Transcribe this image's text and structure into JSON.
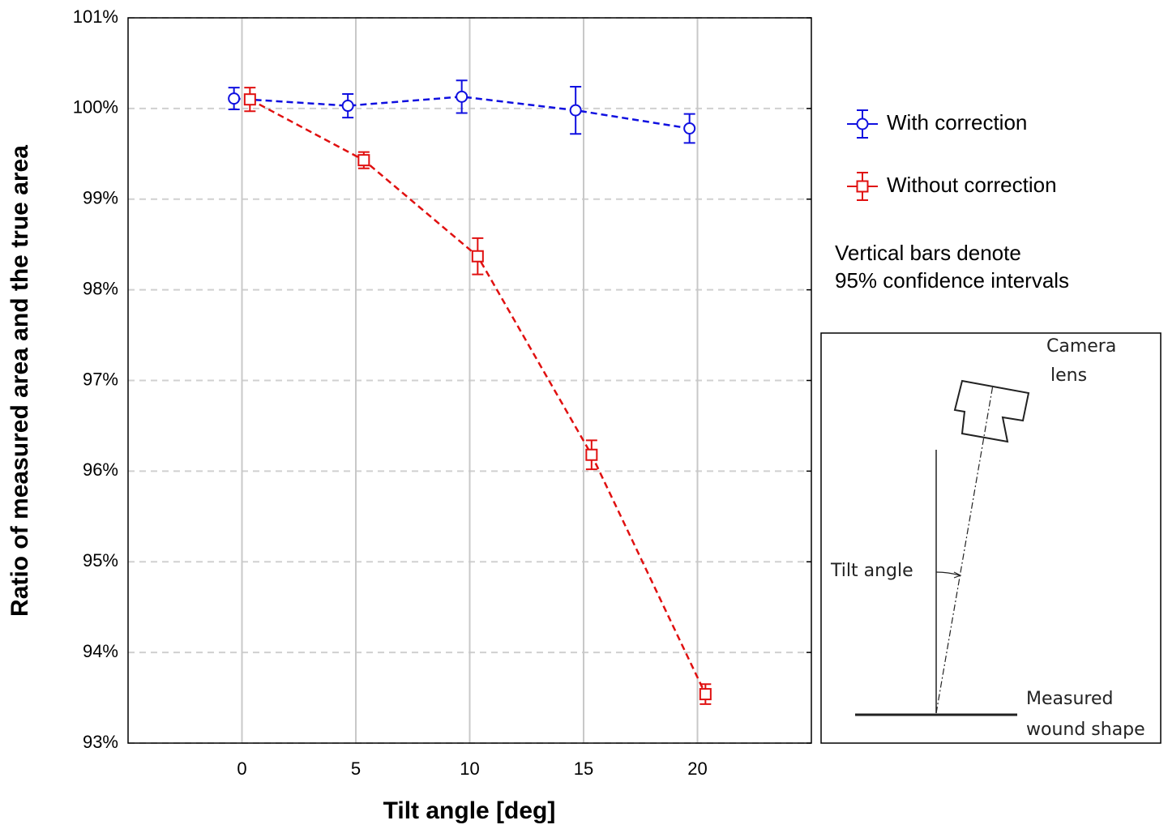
{
  "chart_data": {
    "type": "line",
    "xlabel": "Tilt angle [deg]",
    "ylabel": "Ratio of measured area and the true area",
    "xlim": [
      -5,
      25
    ],
    "xticks": [
      0,
      5,
      10,
      15,
      20
    ],
    "ylim": [
      93,
      101
    ],
    "yticks": [
      {
        "value": 93,
        "label": "93%"
      },
      {
        "value": 94,
        "label": "94%"
      },
      {
        "value": 95,
        "label": "95%"
      },
      {
        "value": 96,
        "label": "96%"
      },
      {
        "value": 97,
        "label": "97%"
      },
      {
        "value": 98,
        "label": "98%"
      },
      {
        "value": 99,
        "label": "99%"
      },
      {
        "value": 100,
        "label": "100%"
      },
      {
        "value": 101,
        "label": "101%"
      }
    ],
    "grid": true,
    "series": [
      {
        "name": "With correction",
        "color": "#1010e0",
        "marker": "circle",
        "x": [
          -0.35,
          4.65,
          9.65,
          14.65,
          19.65
        ],
        "values": [
          100.11,
          100.03,
          100.13,
          99.98,
          99.78
        ],
        "errors": [
          0.12,
          0.13,
          0.18,
          0.26,
          0.16
        ]
      },
      {
        "name": "Without correction",
        "color": "#e01010",
        "marker": "square",
        "x": [
          0.35,
          5.35,
          10.35,
          15.35,
          20.35
        ],
        "values": [
          100.1,
          99.43,
          98.37,
          96.18,
          93.54
        ],
        "errors": [
          0.13,
          0.09,
          0.2,
          0.16,
          0.11
        ]
      }
    ],
    "annotations": [
      "Vertical bars denote",
      "95% confidence intervals"
    ]
  },
  "diagram": {
    "camera_label": [
      "Camera",
      "lens"
    ],
    "tilt_label": "Tilt angle",
    "surface_label": [
      "Measured",
      "wound shape"
    ]
  }
}
